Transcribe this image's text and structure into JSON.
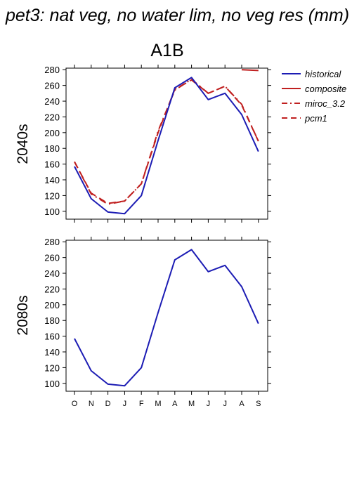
{
  "header": {
    "title": "pet3: nat veg, no water lim, no veg res (mm)",
    "scenario": "A1B"
  },
  "colors": {
    "historical": "#1c1cb4",
    "projection": "#c02020"
  },
  "chart_data": [
    {
      "type": "line",
      "title": "A1B",
      "row_label": "2040s",
      "categories": [
        "O",
        "N",
        "D",
        "J",
        "F",
        "M",
        "A",
        "M",
        "J",
        "J",
        "A",
        "S"
      ],
      "yticks": [
        100,
        120,
        140,
        160,
        180,
        200,
        220,
        240,
        260,
        280
      ],
      "ylim": [
        90,
        282
      ],
      "grid": false,
      "legend": "right",
      "series": [
        {
          "name": "historical",
          "style": "solid",
          "color": "#1c1cb4",
          "values": [
            157,
            116,
            99,
            97,
            120,
            190,
            257,
            270,
            242,
            250,
            223,
            176
          ]
        },
        {
          "name": "composite",
          "style": "solid",
          "color": "#c02020",
          "values": [
            null,
            null,
            null,
            null,
            null,
            null,
            null,
            null,
            null,
            null,
            280,
            279
          ]
        },
        {
          "name": "miroc_3.2",
          "style": "dashdot",
          "color": "#c02020",
          "values": [
            163,
            122,
            109,
            113,
            135,
            202,
            254,
            268,
            250,
            259,
            236,
            189
          ]
        },
        {
          "name": "pcm1",
          "style": "dash",
          "color": "#c02020",
          "values": [
            163,
            123,
            110,
            113,
            135,
            200,
            255,
            267,
            250,
            259,
            235,
            189
          ]
        }
      ]
    },
    {
      "type": "line",
      "title": "",
      "row_label": "2080s",
      "categories": [
        "O",
        "N",
        "D",
        "J",
        "F",
        "M",
        "A",
        "M",
        "J",
        "J",
        "A",
        "S"
      ],
      "yticks": [
        100,
        120,
        140,
        160,
        180,
        200,
        220,
        240,
        260,
        280
      ],
      "ylim": [
        90,
        282
      ],
      "grid": false,
      "legend": "none",
      "series": [
        {
          "name": "historical",
          "style": "solid",
          "color": "#1c1cb4",
          "values": [
            157,
            116,
            99,
            97,
            120,
            190,
            257,
            270,
            242,
            250,
            223,
            176
          ]
        }
      ]
    }
  ]
}
